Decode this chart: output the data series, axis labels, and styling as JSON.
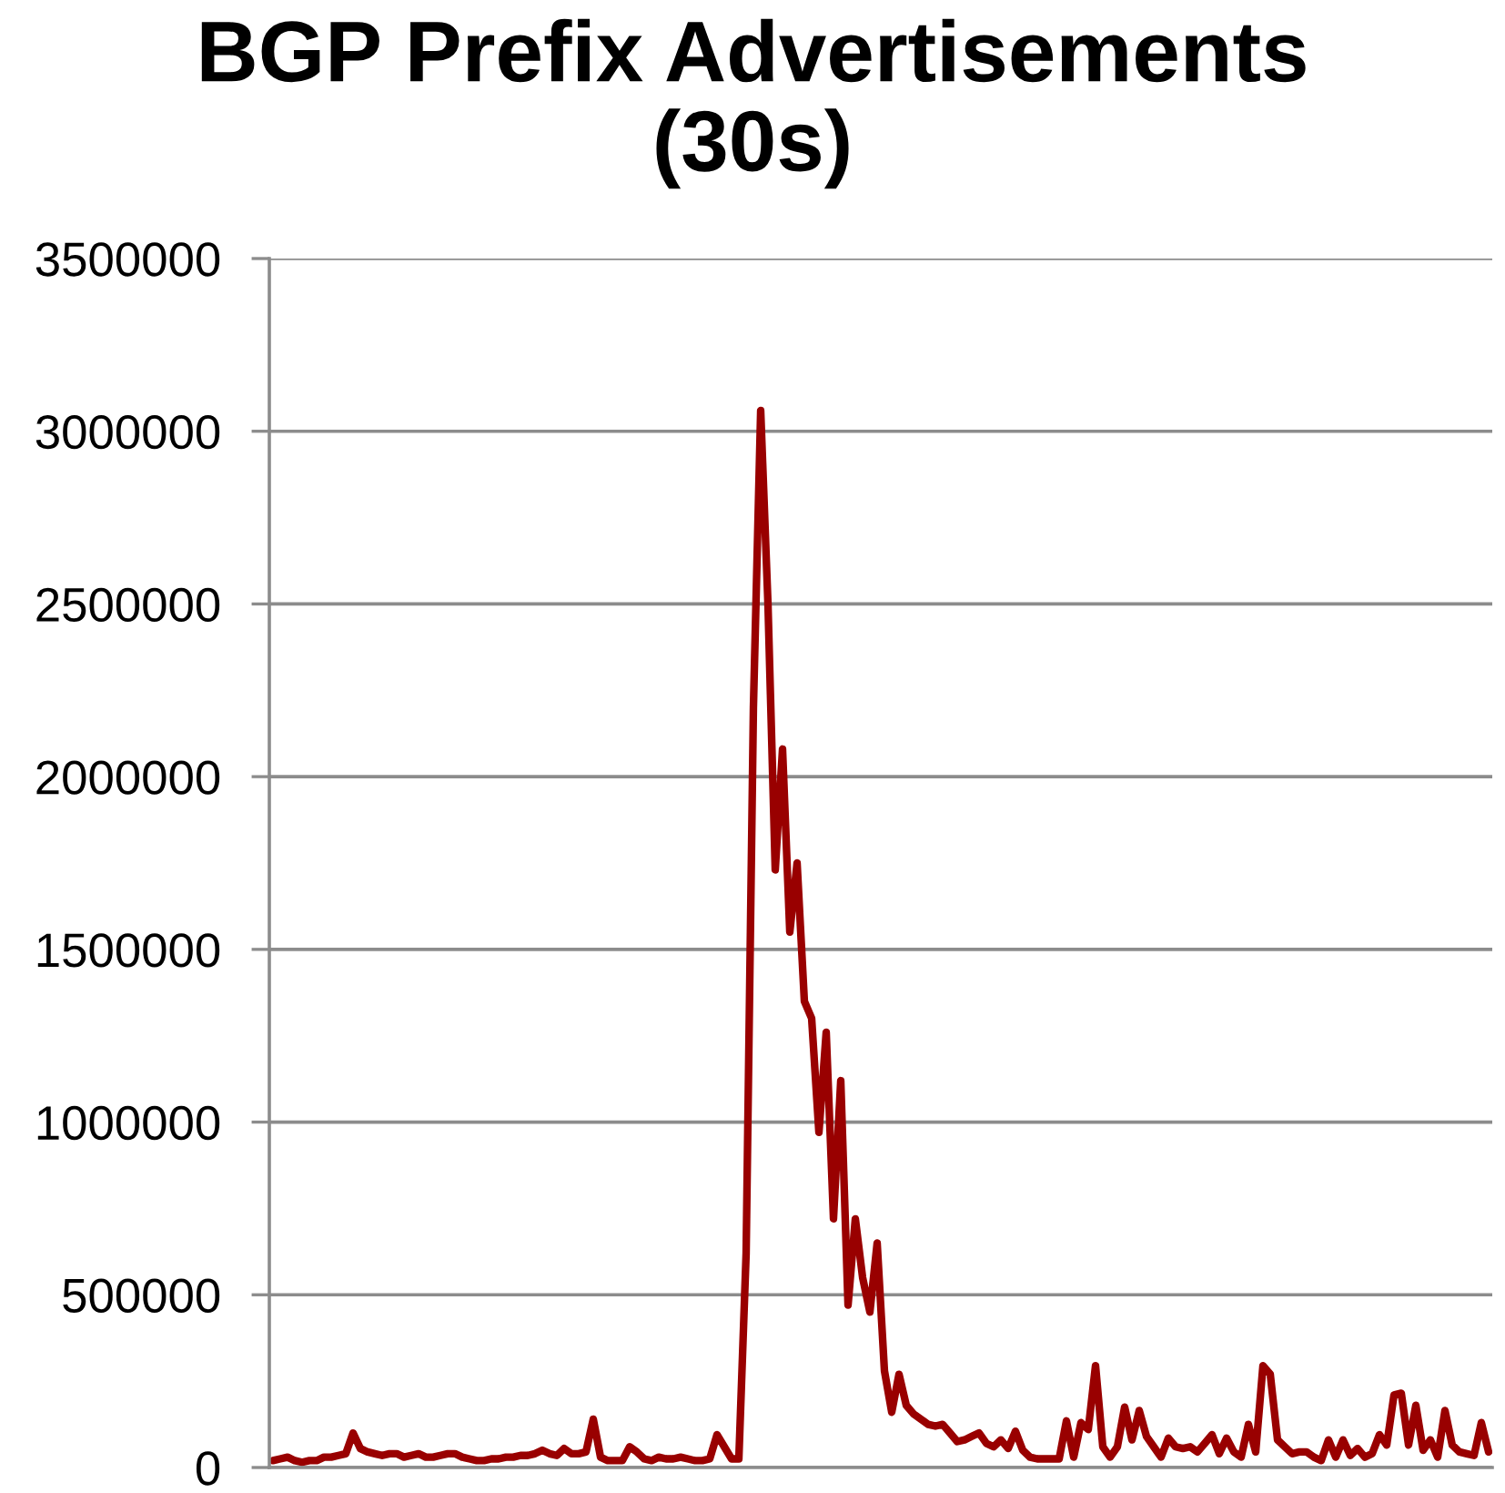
{
  "chart_data": {
    "type": "line",
    "title": "BGP Prefix Advertisements\n(30s)",
    "categories": [
      null,
      null,
      null,
      null,
      null,
      null,
      null,
      null,
      null,
      null,
      null,
      null,
      null,
      null,
      null,
      null,
      null,
      null,
      null,
      null,
      null,
      null,
      null,
      null,
      null,
      null,
      null,
      null,
      null,
      null,
      null,
      null,
      null,
      null,
      null,
      null,
      null,
      null,
      null,
      null,
      null,
      null,
      null,
      null,
      null,
      null,
      null,
      null,
      null,
      null,
      null,
      null,
      null,
      null,
      null,
      null,
      null,
      null,
      null,
      null,
      null,
      null,
      null,
      null,
      null,
      null,
      null,
      null,
      null,
      null,
      null,
      null,
      null,
      null,
      null,
      null,
      null,
      null,
      null,
      null,
      null,
      null,
      null,
      null,
      null,
      null,
      null,
      null,
      null,
      null,
      null,
      null,
      null,
      null,
      null,
      null,
      null,
      null,
      null,
      null,
      null,
      null,
      null,
      null,
      null,
      null,
      null,
      null,
      null,
      null,
      null,
      null,
      null,
      null,
      null,
      null,
      null,
      null,
      null,
      null,
      null,
      null,
      null,
      null,
      null,
      null,
      null,
      null,
      null,
      null,
      null,
      null,
      null,
      null,
      null,
      null,
      null,
      null,
      null,
      null,
      null,
      null,
      null,
      null,
      null,
      null,
      null,
      null,
      null,
      null,
      null,
      null,
      null,
      null,
      null,
      null,
      null,
      null,
      null,
      null,
      null,
      null,
      null,
      null,
      null,
      null,
      null,
      null
    ],
    "series": [
      {
        "color": "#990000",
        "values": [
          20000,
          25000,
          30000,
          20000,
          15000,
          20000,
          20000,
          30000,
          30000,
          35000,
          40000,
          100000,
          55000,
          45000,
          40000,
          35000,
          40000,
          40000,
          30000,
          35000,
          40000,
          30000,
          30000,
          35000,
          40000,
          40000,
          30000,
          25000,
          20000,
          20000,
          25000,
          25000,
          30000,
          30000,
          35000,
          35000,
          40000,
          50000,
          40000,
          35000,
          55000,
          40000,
          40000,
          45000,
          140000,
          30000,
          20000,
          20000,
          20000,
          60000,
          45000,
          25000,
          20000,
          30000,
          25000,
          25000,
          30000,
          25000,
          20000,
          20000,
          25000,
          95000,
          60000,
          25000,
          25000,
          620000,
          2200000,
          3060000,
          2500000,
          1730000,
          2080000,
          1550000,
          1750000,
          1350000,
          1300000,
          970000,
          1260000,
          720000,
          1120000,
          470000,
          720000,
          550000,
          450000,
          650000,
          280000,
          160000,
          270000,
          180000,
          155000,
          140000,
          125000,
          120000,
          125000,
          100000,
          75000,
          80000,
          90000,
          100000,
          70000,
          60000,
          80000,
          55000,
          105000,
          50000,
          30000,
          25000,
          25000,
          25000,
          25000,
          135000,
          30000,
          130000,
          110000,
          295000,
          60000,
          30000,
          60000,
          175000,
          80000,
          165000,
          90000,
          60000,
          30000,
          85000,
          60000,
          55000,
          60000,
          45000,
          70000,
          95000,
          40000,
          85000,
          45000,
          30000,
          125000,
          45000,
          295000,
          270000,
          80000,
          60000,
          40000,
          45000,
          45000,
          30000,
          20000,
          80000,
          30000,
          80000,
          35000,
          55000,
          30000,
          40000,
          95000,
          65000,
          210000,
          215000,
          65000,
          180000,
          50000,
          80000,
          30000,
          165000,
          65000,
          45000,
          40000,
          35000,
          130000,
          45000
        ]
      }
    ],
    "ylim": [
      0,
      3500000
    ],
    "yticks": [
      0,
      500000,
      1000000,
      1500000,
      2000000,
      2500000,
      3000000,
      3500000
    ],
    "grid": "y",
    "tick_labels": "y",
    "line_style": "solid"
  }
}
